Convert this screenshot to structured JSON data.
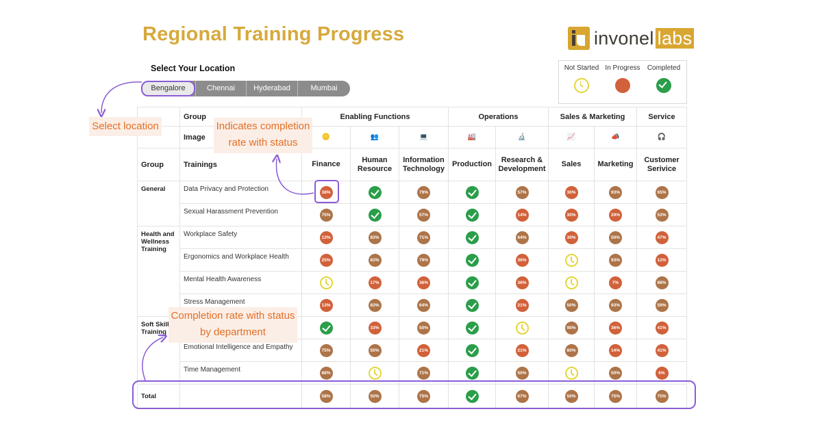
{
  "title": "Regional Training Progress",
  "logo": {
    "main": "invonel",
    "accent": "labs"
  },
  "location": {
    "label": "Select Your Location",
    "tabs": [
      "Bengalore",
      "Chennai",
      "Hyderabad",
      "Mumbai"
    ],
    "selected": "Bengalore"
  },
  "legend": {
    "not_started": "Not Started",
    "in_progress": "In Progress",
    "completed": "Completed"
  },
  "annotations": {
    "select_location": "Select location",
    "indicates_line1": "Indicates completion",
    "indicates_line2": "rate with status",
    "completion_line1": "Completion rate with status",
    "completion_line2": "by department"
  },
  "table": {
    "group_label": "Group",
    "image_label": "Image",
    "trainings_label": "Trainings",
    "groups": [
      {
        "name": "Enabling Functions",
        "span": 3
      },
      {
        "name": "Operations",
        "span": 2
      },
      {
        "name": "Sales & Marketing",
        "span": 2
      },
      {
        "name": "Service",
        "span": 1
      }
    ],
    "departments": [
      {
        "line1": "Finance",
        "line2": "",
        "icon": "🪙"
      },
      {
        "line1": "Human",
        "line2": "Resource",
        "icon": "👥"
      },
      {
        "line1": "Information",
        "line2": "Technology",
        "icon": "💻"
      },
      {
        "line1": "Production",
        "line2": "",
        "icon": "🏭"
      },
      {
        "line1": "Research &",
        "line2": "Development",
        "icon": "🔬"
      },
      {
        "line1": "Sales",
        "line2": "",
        "icon": "📈"
      },
      {
        "line1": "Marketing",
        "line2": "",
        "icon": "📣"
      },
      {
        "line1": "Customer",
        "line2": "Serivice",
        "icon": "🎧"
      }
    ],
    "sections": [
      {
        "label": "General",
        "rows": 2
      },
      {
        "label": "Health and Wellness Training",
        "rows": 4
      },
      {
        "label": "Soft Skill Training",
        "rows": 3
      }
    ],
    "rows": [
      {
        "name": "Data Privacy and Protection",
        "cells": [
          "38%",
          "check",
          "79%",
          "check",
          "57%",
          "30%",
          "93%",
          "65%"
        ]
      },
      {
        "name": "Sexual Harassment Prevention",
        "cells": [
          "75%",
          "check",
          "57%",
          "check",
          "14%",
          "30%",
          "29%",
          "53%"
        ]
      },
      {
        "name": "Workplace Safety",
        "cells": [
          "13%",
          "83%",
          "71%",
          "check",
          "64%",
          "30%",
          "50%",
          "47%"
        ]
      },
      {
        "name": "Ergonomics and Workplace Health",
        "cells": [
          "25%",
          "83%",
          "79%",
          "check",
          "36%",
          "clock",
          "93%",
          "12%"
        ]
      },
      {
        "name": "Mental Health Awareness",
        "cells": [
          "clock",
          "17%",
          "36%",
          "check",
          "36%",
          "clock",
          "7%",
          "88%"
        ]
      },
      {
        "name": "Stress Management",
        "cells": [
          "13%",
          "83%",
          "64%",
          "check",
          "21%",
          "50%",
          "93%",
          "59%"
        ]
      },
      {
        "name": "",
        "cells": [
          "check",
          "33%",
          "50%",
          "check",
          "clock",
          "90%",
          "36%",
          "41%"
        ]
      },
      {
        "name": "Emotional Intelligence and Empathy",
        "cells": [
          "75%",
          "50%",
          "21%",
          "check",
          "21%",
          "80%",
          "14%",
          "41%"
        ]
      },
      {
        "name": "Time Management",
        "cells": [
          "88%",
          "clock",
          "71%",
          "check",
          "50%",
          "clock",
          "50%",
          "6%"
        ]
      }
    ],
    "total": {
      "label": "Total",
      "cells": [
        "58%",
        "50%",
        "75%",
        "check",
        "67%",
        "50%",
        "75%",
        "75%"
      ]
    }
  },
  "colors": {
    "accent": "#8a5cd6",
    "title": "#d6a93c",
    "annotation_text": "#e36f27",
    "annotation_bg": "#fbeee6",
    "completed": "#2a9e4a",
    "in_progress": "#d1613a",
    "not_started": "#e4d63a"
  }
}
